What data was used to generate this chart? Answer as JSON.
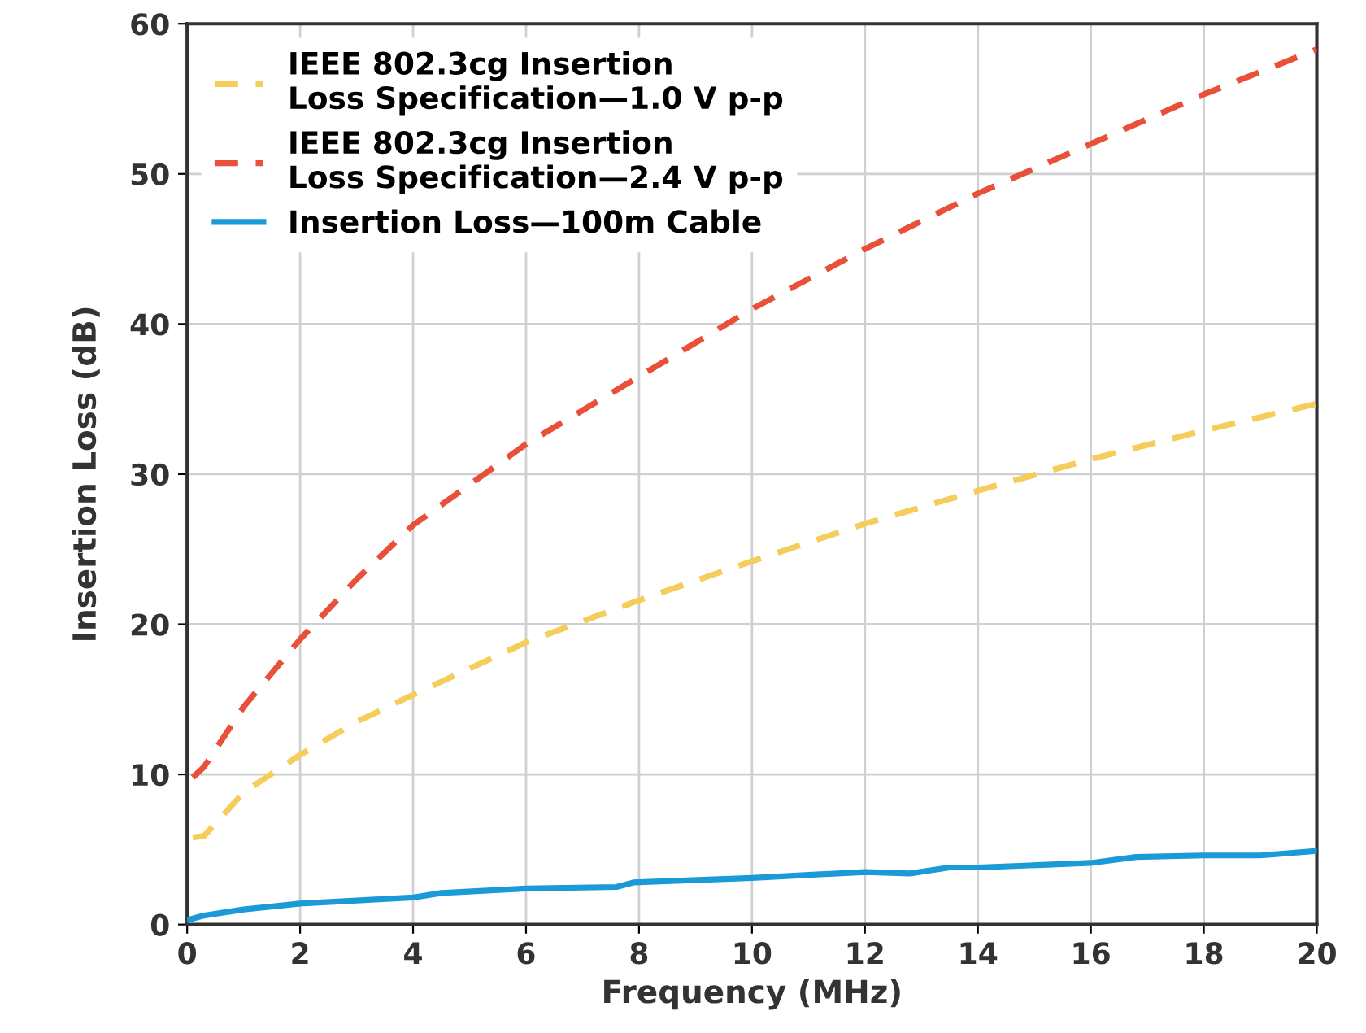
{
  "chart_data": {
    "type": "line",
    "xlabel": "Frequency (MHz)",
    "ylabel": "Insertion Loss (dB)",
    "xlim": [
      0,
      20
    ],
    "ylim": [
      0,
      60
    ],
    "xticks": [
      0,
      2,
      4,
      6,
      8,
      10,
      12,
      14,
      16,
      18,
      20
    ],
    "yticks": [
      0,
      10,
      20,
      30,
      40,
      50,
      60
    ],
    "grid": true,
    "legend": "top left",
    "series": [
      {
        "name": "IEEE 802.3cg Insertion\nLoss Specification—1.0 V p-p",
        "color": "#f5cd5a",
        "line_style": "dashed",
        "x": [
          0.1,
          0.3,
          1,
          2,
          3,
          4,
          6,
          8,
          10,
          12,
          14,
          16,
          18,
          20
        ],
        "values": [
          5.8,
          5.9,
          8.8,
          11.3,
          13.5,
          15.3,
          18.8,
          21.6,
          24.2,
          26.7,
          28.9,
          31,
          32.9,
          34.7
        ]
      },
      {
        "name": "IEEE 802.3cg Insertion\nLoss Specification—2.4 V p-p",
        "color": "#e8503a",
        "line_style": "dashed",
        "x": [
          0.1,
          0.3,
          1,
          2,
          3,
          4,
          6,
          8,
          10,
          12,
          14,
          16,
          18,
          20
        ],
        "values": [
          9.8,
          10.5,
          14.5,
          19,
          23,
          26.6,
          32,
          36.5,
          41,
          45,
          48.7,
          52,
          55.3,
          58.3
        ]
      },
      {
        "name": "Insertion Loss—100m Cable",
        "color": "#1a9ad6",
        "line_style": "solid",
        "x": [
          0,
          0.3,
          1,
          2,
          3,
          4,
          4.5,
          6,
          7.6,
          7.9,
          10,
          12,
          12.8,
          13.5,
          14,
          16,
          16.8,
          18,
          19,
          20
        ],
        "values": [
          0.3,
          0.6,
          1.0,
          1.4,
          1.6,
          1.8,
          2.1,
          2.4,
          2.5,
          2.8,
          3.1,
          3.5,
          3.4,
          3.8,
          3.8,
          4.1,
          4.5,
          4.6,
          4.6,
          4.9
        ]
      }
    ]
  }
}
